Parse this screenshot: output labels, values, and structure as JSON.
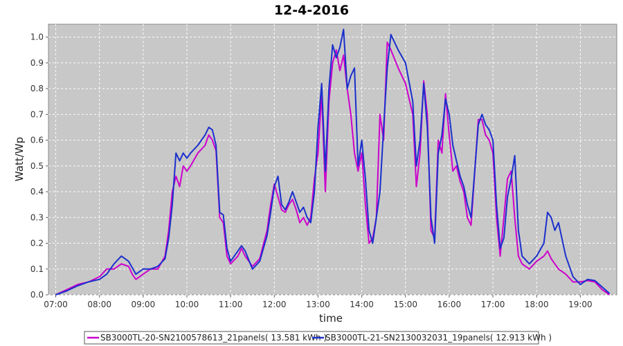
{
  "chart_data": {
    "type": "line",
    "title": "12-4-2016",
    "xlabel": "time",
    "ylabel": "Watt/Wp",
    "xlim": [
      "06:50",
      "19:50"
    ],
    "ylim": [
      0.0,
      1.05
    ],
    "x_ticks": [
      "07:00",
      "08:00",
      "09:00",
      "10:00",
      "11:00",
      "12:00",
      "13:00",
      "14:00",
      "15:00",
      "16:00",
      "17:00",
      "18:00",
      "19:00"
    ],
    "y_ticks": [
      "0.0",
      "0.1",
      "0.2",
      "0.3",
      "0.4",
      "0.5",
      "0.6",
      "0.7",
      "0.8",
      "0.9",
      "1.0"
    ],
    "grid": true,
    "legend_position": "bottom",
    "series": [
      {
        "name": "SB3000TL-20-SN2100578613_21panels( 13.581 kWh )",
        "color": "#cc00cc",
        "points": [
          [
            "07:00",
            0.0
          ],
          [
            "07:15",
            0.02
          ],
          [
            "07:30",
            0.04
          ],
          [
            "07:45",
            0.05
          ],
          [
            "08:00",
            0.07
          ],
          [
            "08:10",
            0.1
          ],
          [
            "08:20",
            0.1
          ],
          [
            "08:30",
            0.12
          ],
          [
            "08:40",
            0.11
          ],
          [
            "08:45",
            0.08
          ],
          [
            "08:50",
            0.06
          ],
          [
            "09:00",
            0.08
          ],
          [
            "09:10",
            0.1
          ],
          [
            "09:20",
            0.1
          ],
          [
            "09:30",
            0.15
          ],
          [
            "09:35",
            0.25
          ],
          [
            "09:40",
            0.4
          ],
          [
            "09:45",
            0.46
          ],
          [
            "09:50",
            0.42
          ],
          [
            "09:55",
            0.5
          ],
          [
            "10:00",
            0.48
          ],
          [
            "10:05",
            0.5
          ],
          [
            "10:15",
            0.55
          ],
          [
            "10:25",
            0.58
          ],
          [
            "10:30",
            0.62
          ],
          [
            "10:35",
            0.6
          ],
          [
            "10:40",
            0.56
          ],
          [
            "10:45",
            0.3
          ],
          [
            "10:50",
            0.28
          ],
          [
            "10:55",
            0.15
          ],
          [
            "11:00",
            0.12
          ],
          [
            "11:10",
            0.15
          ],
          [
            "11:15",
            0.18
          ],
          [
            "11:20",
            0.15
          ],
          [
            "11:30",
            0.11
          ],
          [
            "11:40",
            0.14
          ],
          [
            "11:50",
            0.25
          ],
          [
            "11:55",
            0.35
          ],
          [
            "12:00",
            0.43
          ],
          [
            "12:05",
            0.38
          ],
          [
            "12:10",
            0.33
          ],
          [
            "12:15",
            0.32
          ],
          [
            "12:20",
            0.35
          ],
          [
            "12:25",
            0.37
          ],
          [
            "12:30",
            0.33
          ],
          [
            "12:35",
            0.28
          ],
          [
            "12:40",
            0.3
          ],
          [
            "12:45",
            0.27
          ],
          [
            "12:50",
            0.3
          ],
          [
            "12:55",
            0.45
          ],
          [
            "13:00",
            0.55
          ],
          [
            "13:05",
            0.78
          ],
          [
            "13:10",
            0.4
          ],
          [
            "13:15",
            0.75
          ],
          [
            "13:20",
            0.9
          ],
          [
            "13:25",
            0.95
          ],
          [
            "13:30",
            0.87
          ],
          [
            "13:35",
            0.93
          ],
          [
            "13:40",
            0.8
          ],
          [
            "13:45",
            0.7
          ],
          [
            "13:50",
            0.55
          ],
          [
            "13:55",
            0.48
          ],
          [
            "14:00",
            0.55
          ],
          [
            "14:05",
            0.35
          ],
          [
            "14:10",
            0.2
          ],
          [
            "14:15",
            0.22
          ],
          [
            "14:20",
            0.3
          ],
          [
            "14:25",
            0.7
          ],
          [
            "14:30",
            0.6
          ],
          [
            "14:35",
            0.98
          ],
          [
            "14:40",
            0.95
          ],
          [
            "14:50",
            0.88
          ],
          [
            "15:00",
            0.82
          ],
          [
            "15:10",
            0.7
          ],
          [
            "15:15",
            0.42
          ],
          [
            "15:20",
            0.55
          ],
          [
            "15:25",
            0.83
          ],
          [
            "15:30",
            0.7
          ],
          [
            "15:35",
            0.25
          ],
          [
            "15:40",
            0.22
          ],
          [
            "15:45",
            0.6
          ],
          [
            "15:50",
            0.55
          ],
          [
            "15:55",
            0.78
          ],
          [
            "16:00",
            0.62
          ],
          [
            "16:05",
            0.48
          ],
          [
            "16:10",
            0.5
          ],
          [
            "16:15",
            0.44
          ],
          [
            "16:20",
            0.4
          ],
          [
            "16:25",
            0.3
          ],
          [
            "16:30",
            0.27
          ],
          [
            "16:40",
            0.68
          ],
          [
            "16:45",
            0.68
          ],
          [
            "16:50",
            0.62
          ],
          [
            "16:55",
            0.6
          ],
          [
            "17:00",
            0.55
          ],
          [
            "17:05",
            0.3
          ],
          [
            "17:10",
            0.15
          ],
          [
            "17:15",
            0.3
          ],
          [
            "17:20",
            0.45
          ],
          [
            "17:25",
            0.48
          ],
          [
            "17:30",
            0.3
          ],
          [
            "17:35",
            0.15
          ],
          [
            "17:40",
            0.12
          ],
          [
            "17:50",
            0.1
          ],
          [
            "18:00",
            0.13
          ],
          [
            "18:10",
            0.15
          ],
          [
            "18:15",
            0.17
          ],
          [
            "18:20",
            0.14
          ],
          [
            "18:30",
            0.1
          ],
          [
            "18:40",
            0.08
          ],
          [
            "18:50",
            0.05
          ],
          [
            "19:00",
            0.05
          ],
          [
            "19:10",
            0.055
          ],
          [
            "19:20",
            0.05
          ],
          [
            "19:30",
            0.02
          ],
          [
            "19:40",
            0.0
          ]
        ]
      },
      {
        "name": "SB3000TL-21-SN2130032031_19panels( 12.913 kWh )",
        "color": "#1a2fcc",
        "points": [
          [
            "07:00",
            0.0
          ],
          [
            "07:15",
            0.015
          ],
          [
            "07:30",
            0.035
          ],
          [
            "07:45",
            0.05
          ],
          [
            "08:00",
            0.06
          ],
          [
            "08:10",
            0.08
          ],
          [
            "08:20",
            0.12
          ],
          [
            "08:30",
            0.15
          ],
          [
            "08:40",
            0.13
          ],
          [
            "08:50",
            0.08
          ],
          [
            "09:00",
            0.1
          ],
          [
            "09:10",
            0.1
          ],
          [
            "09:20",
            0.11
          ],
          [
            "09:30",
            0.14
          ],
          [
            "09:35",
            0.22
          ],
          [
            "09:40",
            0.35
          ],
          [
            "09:45",
            0.55
          ],
          [
            "09:50",
            0.52
          ],
          [
            "09:55",
            0.55
          ],
          [
            "10:00",
            0.53
          ],
          [
            "10:05",
            0.55
          ],
          [
            "10:15",
            0.58
          ],
          [
            "10:25",
            0.62
          ],
          [
            "10:30",
            0.65
          ],
          [
            "10:35",
            0.64
          ],
          [
            "10:40",
            0.58
          ],
          [
            "10:45",
            0.32
          ],
          [
            "10:50",
            0.31
          ],
          [
            "10:55",
            0.18
          ],
          [
            "11:00",
            0.13
          ],
          [
            "11:10",
            0.17
          ],
          [
            "11:15",
            0.19
          ],
          [
            "11:20",
            0.17
          ],
          [
            "11:30",
            0.1
          ],
          [
            "11:40",
            0.13
          ],
          [
            "11:50",
            0.23
          ],
          [
            "11:55",
            0.32
          ],
          [
            "12:00",
            0.42
          ],
          [
            "12:05",
            0.46
          ],
          [
            "12:10",
            0.35
          ],
          [
            "12:15",
            0.33
          ],
          [
            "12:20",
            0.36
          ],
          [
            "12:25",
            0.4
          ],
          [
            "12:30",
            0.36
          ],
          [
            "12:35",
            0.32
          ],
          [
            "12:40",
            0.34
          ],
          [
            "12:45",
            0.3
          ],
          [
            "12:50",
            0.28
          ],
          [
            "12:55",
            0.4
          ],
          [
            "13:00",
            0.65
          ],
          [
            "13:05",
            0.82
          ],
          [
            "13:10",
            0.48
          ],
          [
            "13:15",
            0.8
          ],
          [
            "13:20",
            0.97
          ],
          [
            "13:25",
            0.92
          ],
          [
            "13:30",
            0.96
          ],
          [
            "13:35",
            1.03
          ],
          [
            "13:40",
            0.8
          ],
          [
            "13:45",
            0.85
          ],
          [
            "13:50",
            0.88
          ],
          [
            "13:55",
            0.5
          ],
          [
            "14:00",
            0.6
          ],
          [
            "14:05",
            0.45
          ],
          [
            "14:10",
            0.25
          ],
          [
            "14:15",
            0.2
          ],
          [
            "14:20",
            0.3
          ],
          [
            "14:25",
            0.4
          ],
          [
            "14:30",
            0.65
          ],
          [
            "14:35",
            0.88
          ],
          [
            "14:40",
            1.01
          ],
          [
            "14:50",
            0.95
          ],
          [
            "15:00",
            0.9
          ],
          [
            "15:10",
            0.75
          ],
          [
            "15:15",
            0.5
          ],
          [
            "15:20",
            0.6
          ],
          [
            "15:25",
            0.82
          ],
          [
            "15:30",
            0.65
          ],
          [
            "15:35",
            0.3
          ],
          [
            "15:40",
            0.2
          ],
          [
            "15:45",
            0.55
          ],
          [
            "15:50",
            0.62
          ],
          [
            "15:55",
            0.76
          ],
          [
            "16:00",
            0.7
          ],
          [
            "16:05",
            0.58
          ],
          [
            "16:10",
            0.52
          ],
          [
            "16:15",
            0.46
          ],
          [
            "16:20",
            0.42
          ],
          [
            "16:25",
            0.35
          ],
          [
            "16:30",
            0.3
          ],
          [
            "16:40",
            0.66
          ],
          [
            "16:45",
            0.7
          ],
          [
            "16:50",
            0.66
          ],
          [
            "16:55",
            0.64
          ],
          [
            "17:00",
            0.6
          ],
          [
            "17:05",
            0.35
          ],
          [
            "17:10",
            0.18
          ],
          [
            "17:15",
            0.22
          ],
          [
            "17:20",
            0.38
          ],
          [
            "17:25",
            0.45
          ],
          [
            "17:30",
            0.54
          ],
          [
            "17:35",
            0.25
          ],
          [
            "17:40",
            0.15
          ],
          [
            "17:50",
            0.12
          ],
          [
            "18:00",
            0.15
          ],
          [
            "18:10",
            0.2
          ],
          [
            "18:15",
            0.32
          ],
          [
            "18:20",
            0.3
          ],
          [
            "18:25",
            0.25
          ],
          [
            "18:30",
            0.28
          ],
          [
            "18:40",
            0.15
          ],
          [
            "18:50",
            0.07
          ],
          [
            "19:00",
            0.04
          ],
          [
            "19:10",
            0.06
          ],
          [
            "19:20",
            0.055
          ],
          [
            "19:30",
            0.03
          ],
          [
            "19:40",
            0.005
          ]
        ]
      }
    ]
  }
}
